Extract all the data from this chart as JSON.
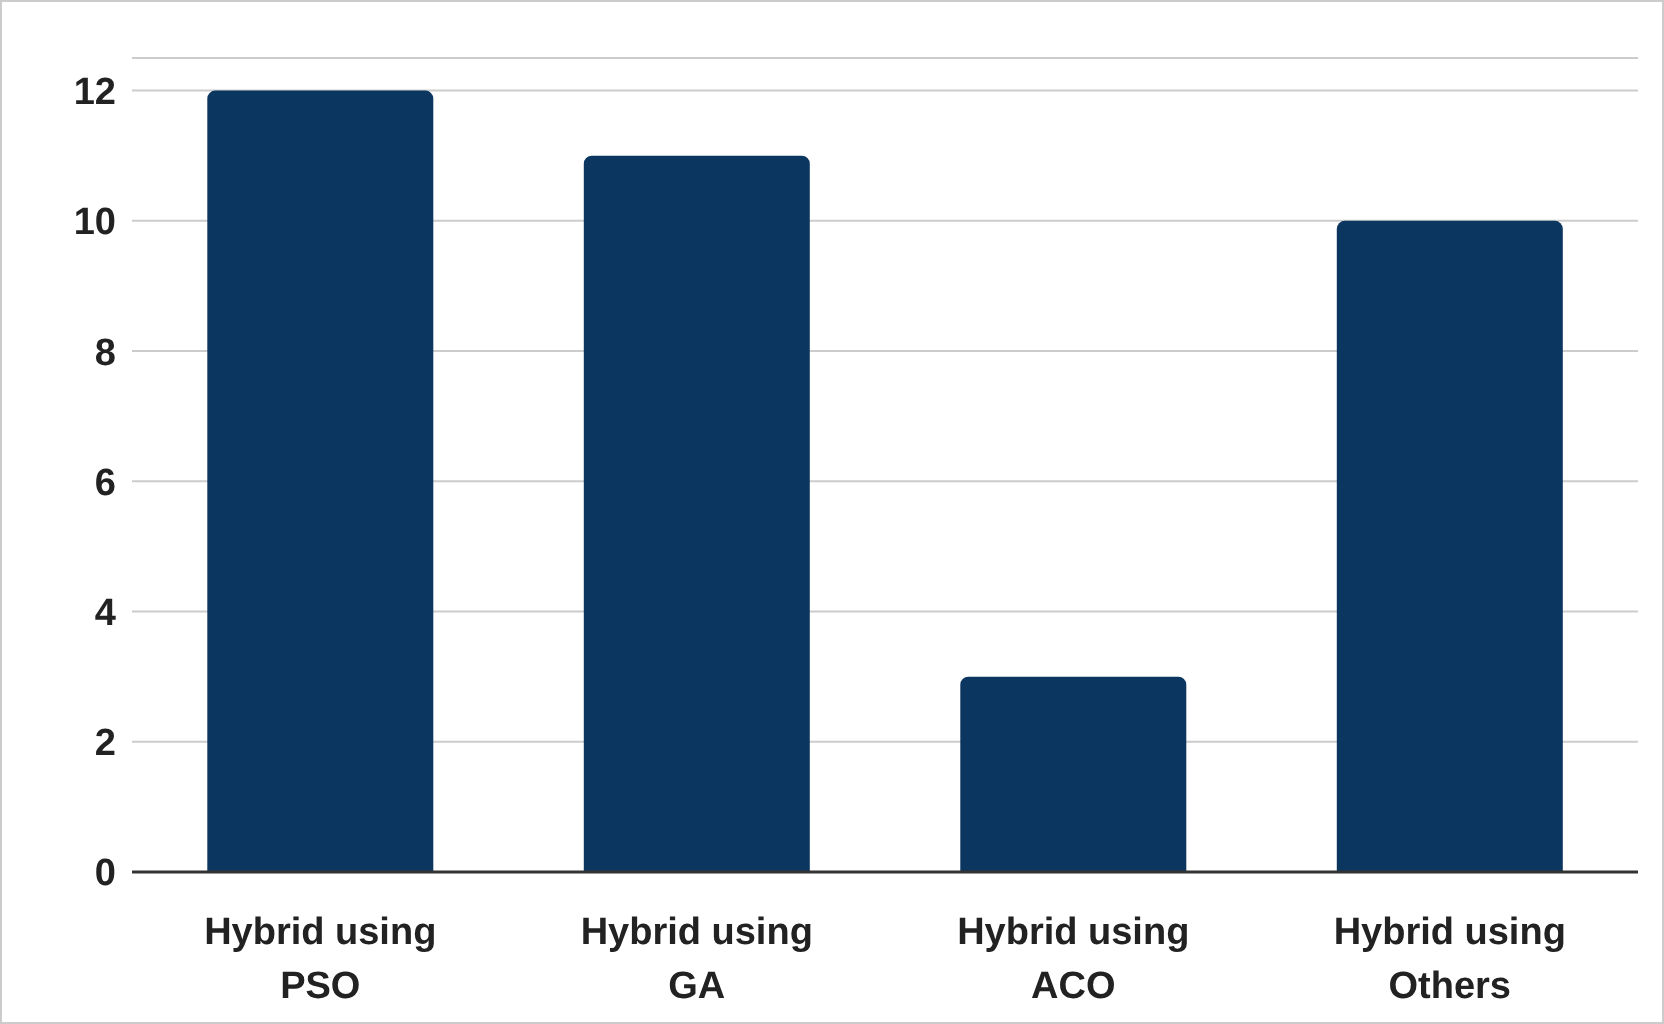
{
  "chart_data": {
    "type": "bar",
    "categories": [
      "Hybrid using PSO",
      "Hybrid using GA",
      "Hybrid using ACO",
      "Hybrid using Others"
    ],
    "values": [
      12,
      11,
      3,
      10
    ],
    "color": "#0b3660",
    "ylim": [
      0,
      12.5
    ],
    "yticks": [
      0,
      2,
      4,
      6,
      8,
      10,
      12
    ],
    "grid": "y",
    "legend": false
  }
}
